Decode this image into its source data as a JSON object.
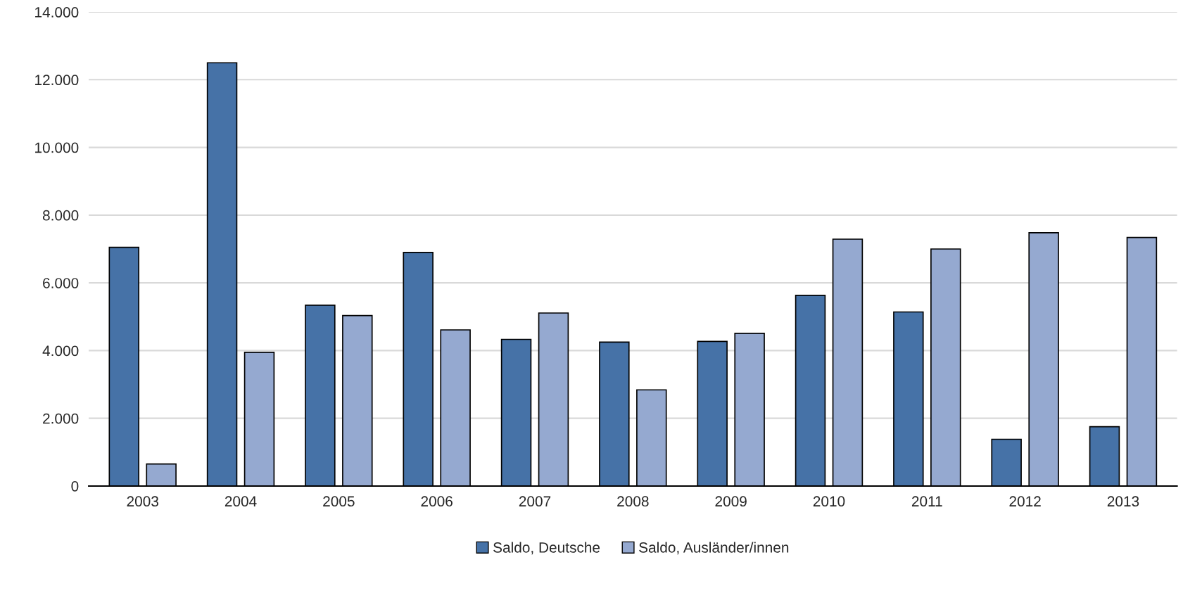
{
  "chart_data": {
    "type": "bar",
    "categories": [
      "2003",
      "2004",
      "2005",
      "2006",
      "2007",
      "2008",
      "2009",
      "2010",
      "2011",
      "2012",
      "2013"
    ],
    "series": [
      {
        "name": "Saldo, Deutsche",
        "color": "#4672a7",
        "values": [
          7050,
          12500,
          5340,
          6900,
          4330,
          4250,
          4270,
          5630,
          5140,
          1380,
          1750
        ]
      },
      {
        "name": "Saldo, Ausländer/innen",
        "color": "#95a9d0",
        "values": [
          650,
          3950,
          5035,
          4610,
          5110,
          2840,
          4510,
          7290,
          7000,
          7480,
          7340
        ]
      }
    ],
    "ylim": [
      0,
      14000
    ],
    "yticks": [
      0,
      {
        "value": 2000,
        "label": "2.000"
      },
      {
        "value": 4000,
        "label": "4.000"
      },
      {
        "value": 6000,
        "label": "6.000"
      },
      {
        "value": 8000,
        "label": "8.000"
      },
      {
        "value": 10000,
        "label": "10.000"
      },
      {
        "value": 12000,
        "label": "12.000"
      },
      {
        "value": 14000,
        "label": "14.000"
      }
    ],
    "grid": "y",
    "legend": "bottom"
  }
}
